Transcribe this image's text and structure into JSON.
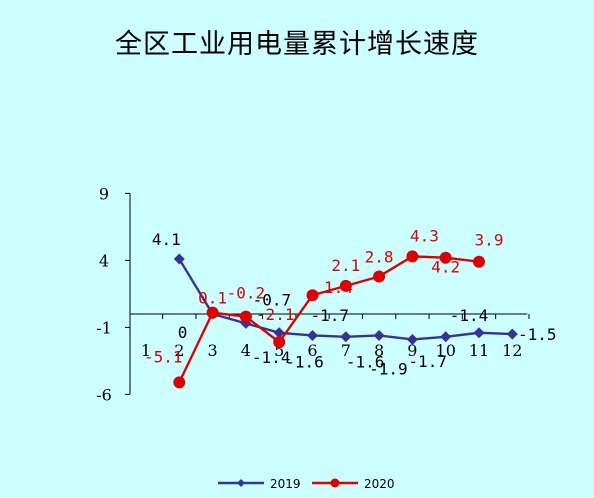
{
  "chart_data": {
    "type": "line",
    "title": "全区工业用电量累计增长速度",
    "categories": [
      "1",
      "2",
      "3",
      "4",
      "5",
      "6",
      "7",
      "8",
      "9",
      "10",
      "11",
      "12"
    ],
    "y_ticks": [
      "9",
      "4",
      "-1",
      "-6"
    ],
    "ylim": [
      -6,
      9
    ],
    "series": [
      {
        "name": "2019",
        "color": "#33339a",
        "marker": "diamond",
        "values": [
          null,
          4.1,
          0,
          -0.7,
          -1.4,
          -1.6,
          -1.7,
          -1.6,
          -1.9,
          -1.7,
          -1.4,
          -1.5
        ],
        "labels": [
          null,
          "4.1",
          "0",
          "-0.7",
          "-1.4",
          "-1.6",
          "-1.7",
          "-1.6",
          "-1.9",
          "-1.7",
          "-1.4",
          "-1.5"
        ]
      },
      {
        "name": "2020",
        "color": "#e00000",
        "marker": "circle",
        "values": [
          null,
          -5.1,
          0.1,
          -0.2,
          -2.1,
          1.4,
          2.1,
          2.8,
          4.3,
          4.2,
          3.9,
          null
        ],
        "labels": [
          null,
          "-5.1",
          "0.1",
          "-0.2",
          "-2.1",
          "1.4",
          "2.1",
          "2.8",
          "4.3",
          "4.2",
          "3.9",
          null
        ]
      }
    ],
    "legend": {
      "position": "bottom",
      "entries": [
        "2019",
        "2020"
      ]
    },
    "grid": false
  }
}
